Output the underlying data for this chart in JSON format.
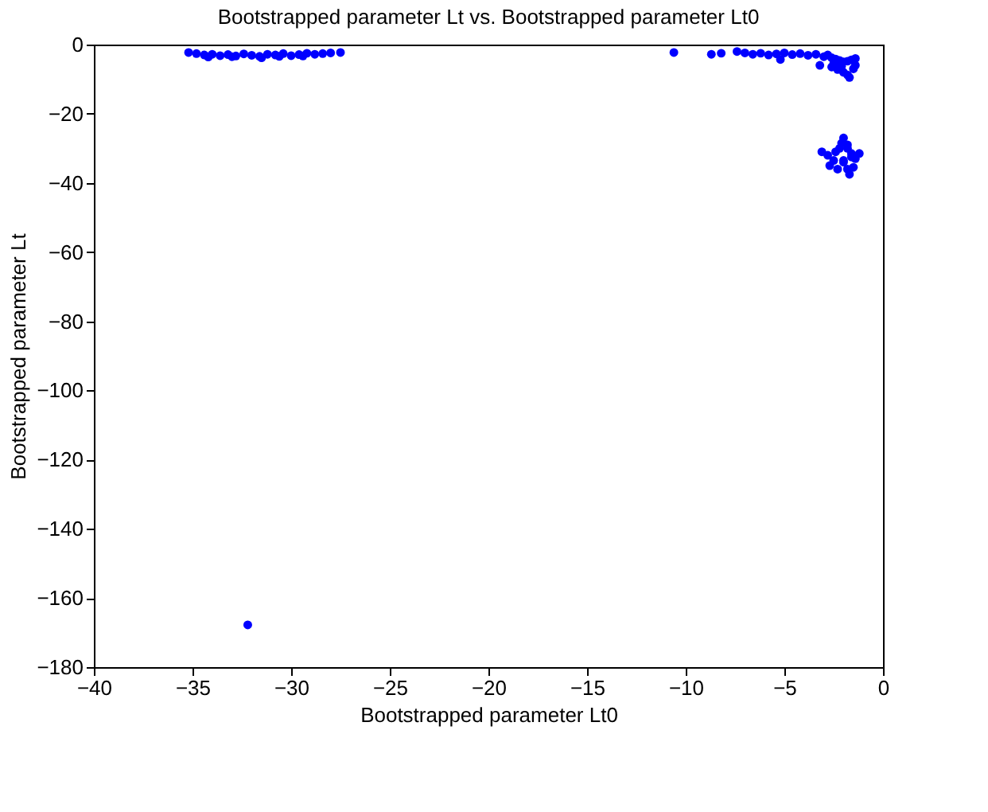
{
  "chart_data": {
    "type": "scatter",
    "title": "Bootstrapped parameter Lt vs. Bootstrapped parameter Lt0",
    "xlabel": "Bootstrapped parameter Lt0",
    "ylabel": "Bootstrapped parameter Lt",
    "xlim": [
      -40,
      0
    ],
    "ylim": [
      -180,
      0
    ],
    "xticks": [
      -40,
      -35,
      -30,
      -25,
      -20,
      -15,
      -10,
      -5,
      0
    ],
    "yticks": [
      -180,
      -160,
      -140,
      -120,
      -100,
      -80,
      -60,
      -40,
      -20,
      0
    ],
    "marker": "circle",
    "grid": false,
    "series": [
      {
        "color": "#0000ff",
        "x": [
          -35.2,
          -34.8,
          -34.4,
          -34.0,
          -33.6,
          -33.2,
          -32.8,
          -32.4,
          -32.0,
          -31.6,
          -31.2,
          -30.8,
          -30.4,
          -30.0,
          -29.6,
          -29.2,
          -28.8,
          -28.4,
          -28.0,
          -27.5,
          -34.2,
          -33.0,
          -31.5,
          -30.6,
          -29.4,
          -32.2,
          -10.6,
          -8.7,
          -8.2,
          -7.4,
          -7.0,
          -6.6,
          -6.2,
          -5.8,
          -5.4,
          -5.0,
          -4.6,
          -4.2,
          -3.8,
          -3.4,
          -3.0,
          -2.8,
          -2.6,
          -2.4,
          -2.2,
          -2.0,
          -1.8,
          -1.6,
          -1.4,
          -5.2,
          -3.2,
          -2.6,
          -2.3,
          -2.0,
          -1.8,
          -1.5,
          -2.5,
          -2.1,
          -1.7,
          -1.4,
          -3.1,
          -2.8,
          -2.5,
          -2.2,
          -2.0,
          -1.8,
          -1.6,
          -1.4,
          -1.2,
          -2.7,
          -2.3,
          -2.0,
          -1.7,
          -1.5,
          -2.4,
          -2.1,
          -1.8,
          -1.6,
          -2.0,
          -1.8
        ],
        "values": [
          -2.3,
          -2.6,
          -3.0,
          -2.8,
          -3.2,
          -2.9,
          -3.3,
          -2.7,
          -3.1,
          -3.4,
          -2.8,
          -3.0,
          -2.6,
          -3.2,
          -2.9,
          -2.5,
          -2.8,
          -2.6,
          -2.4,
          -2.3,
          -3.6,
          -3.5,
          -3.8,
          -3.4,
          -3.3,
          -167.8,
          -2.3,
          -2.8,
          -2.5,
          -2.0,
          -2.4,
          -2.8,
          -2.5,
          -3.0,
          -2.7,
          -2.4,
          -2.9,
          -2.6,
          -3.1,
          -2.8,
          -3.5,
          -3.0,
          -3.8,
          -4.2,
          -4.6,
          -5.0,
          -4.8,
          -4.4,
          -4.0,
          -4.3,
          -6.0,
          -6.5,
          -7.2,
          -8.0,
          -8.8,
          -7.0,
          -5.5,
          -6.3,
          -9.5,
          -6.0,
          -31.0,
          -32.0,
          -33.5,
          -30.0,
          -27.0,
          -29.0,
          -31.5,
          -33.0,
          -31.5,
          -35.0,
          -36.0,
          -34.0,
          -37.5,
          -35.5,
          -31.0,
          -28.5,
          -30.0,
          -32.5,
          -33.5,
          -36.0
        ]
      }
    ]
  }
}
